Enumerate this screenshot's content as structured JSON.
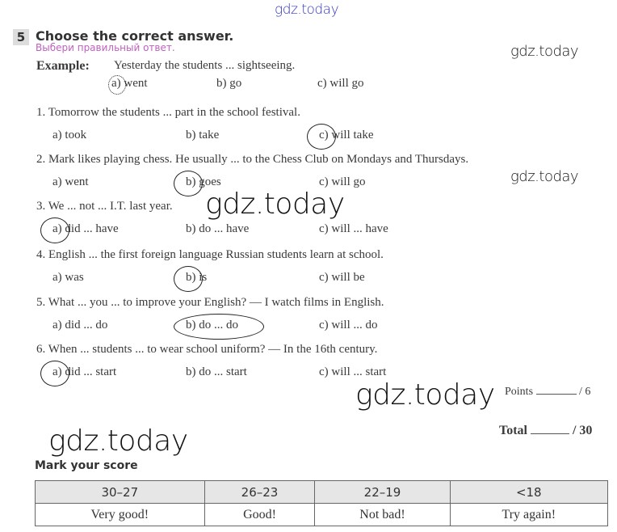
{
  "watermarks": [
    "gdz.today",
    "gdz.today",
    "gdz.today",
    "gdz.today",
    "gdz.today",
    "gdz.today"
  ],
  "exercise": {
    "number": "5",
    "title": "Choose the correct answer.",
    "subtitle_ru": "Выбери правильный ответ.",
    "example": {
      "label": "Example:",
      "question": "Yesterday the students ... sightseeing.",
      "options": [
        "a) went",
        "b) go",
        "c) will go"
      ],
      "answer": "a"
    },
    "questions": [
      {
        "text": "1. Tomorrow the students ... part in the school festival.",
        "options": [
          "a) took",
          "b) take",
          "c) will take"
        ],
        "answer": "c"
      },
      {
        "text": "2. Mark likes playing chess. He usually ... to the Chess Club on Mondays and Thursdays.",
        "options": [
          "a) went",
          "b) goes",
          "c) will go"
        ],
        "answer": "b"
      },
      {
        "text": "3. We ... not ... I.T. last year.",
        "options": [
          "a) did ... have",
          "b) do ... have",
          "c) will ... have"
        ],
        "answer": "a"
      },
      {
        "text": "4. English ... the first foreign language Russian students learn at school.",
        "options": [
          "a) was",
          "b) is",
          "c) will be"
        ],
        "answer": "b"
      },
      {
        "text": "5. What ... you ... to improve your English? — I watch films in English.",
        "options": [
          "a) did ... do",
          "b) do ... do",
          "c) will ... do"
        ],
        "answer": "b"
      },
      {
        "text": "6. When ... students ... to wear school uniform? — In the 16th century.",
        "options": [
          "a) did ... start",
          "b) do ... start",
          "c) will ... start"
        ],
        "answer": "a"
      }
    ],
    "points_label": "Points",
    "points_max": "/ 6"
  },
  "total": {
    "label": "Total",
    "max": "/ 30"
  },
  "score": {
    "title": "Mark your score",
    "ranges": [
      "30–27",
      "26–23",
      "22–19",
      "<18"
    ],
    "verdicts": [
      "Very good!",
      "Good!",
      "Not bad!",
      "Try again!"
    ]
  },
  "colors": {
    "watermark_top": "#3333cc",
    "subtitle": "#c060c0"
  }
}
